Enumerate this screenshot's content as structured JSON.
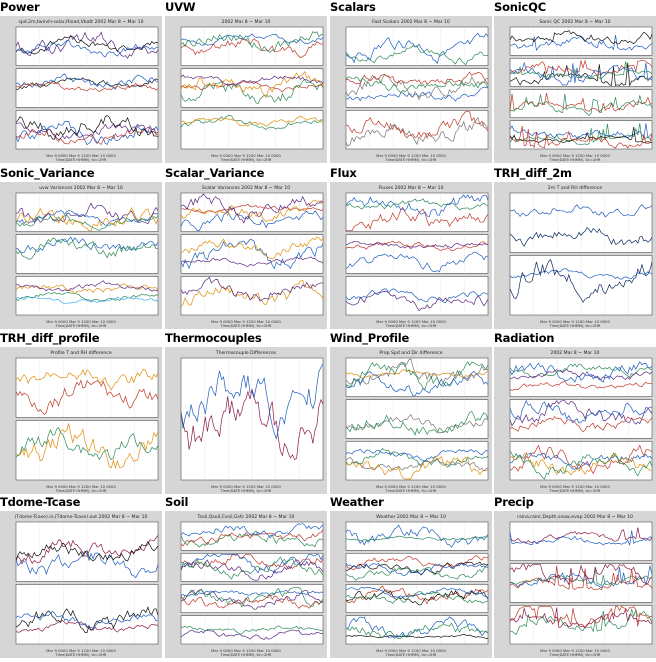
{
  "tiles": [
    {
      "title": "Power",
      "subtitle": "spd.2m,twind+solar,Rload,Vbatt 2002 Mar 8 ~ Mar 10",
      "panels": 3,
      "palette": [
        "#5a2a82",
        "#111111",
        "#1f5fbf",
        "#c0392b"
      ],
      "seed": 1
    },
    {
      "title": "UVW",
      "subtitle": "2002 Mar 8 ~ Mar 10",
      "panels": 3,
      "palette": [
        "#1f5fbf",
        "#c0392b",
        "#2e8b57",
        "#e08e0b",
        "#5a2a82"
      ],
      "seed": 2
    },
    {
      "title": "Scalars",
      "subtitle": "Fast Scalars 2002 Mar 8 ~ Mar 10",
      "panels": 3,
      "palette": [
        "#2e8b57",
        "#1f5fbf",
        "#777777",
        "#c0392b"
      ],
      "seed": 3
    },
    {
      "title": "SonicQC",
      "subtitle": "Sonic QC 2002 Mar 8 ~ Mar 10",
      "panels": 4,
      "palette": [
        "#1f5fbf",
        "#111111",
        "#c0392b",
        "#2e8b57"
      ],
      "seed": 4
    },
    {
      "title": "Sonic_Variance",
      "subtitle": "uvw Variances 2002 Mar 8 ~ Mar 10",
      "panels": 3,
      "palette": [
        "#5a2a82",
        "#1f5fbf",
        "#2e8b57",
        "#e08e0b",
        "#3fa9f5"
      ],
      "seed": 5
    },
    {
      "title": "Scalar_Variance",
      "subtitle": "Scalar Variances 2002 Mar 8 ~ Mar 10",
      "panels": 3,
      "palette": [
        "#c0392b",
        "#1f5fbf",
        "#e08e0b",
        "#5a2a82"
      ],
      "seed": 6
    },
    {
      "title": "Flux",
      "subtitle": "Fluxes 2002 Mar 8 ~ Mar 10",
      "panels": 3,
      "palette": [
        "#2e8b57",
        "#c0392b",
        "#1f5fbf",
        "#5a2a82"
      ],
      "seed": 7
    },
    {
      "title": "TRH_diff_2m",
      "subtitle": "2m T and RH difference",
      "panels": 2,
      "palette": [
        "#0b2a5e",
        "#1f5fbf"
      ],
      "seed": 8
    },
    {
      "title": "TRH_diff_profile",
      "subtitle": "Profile T and RH difference",
      "panels": 2,
      "palette": [
        "#c0392b",
        "#e08e0b",
        "#2e8b57",
        "#1f5fbf",
        "#5a2a82",
        "#111111"
      ],
      "seed": 9
    },
    {
      "title": "Thermocouples",
      "subtitle": "Thermocouple Differences",
      "panels": 1,
      "palette": [
        "#8b1a4a",
        "#1f5fbf",
        "#5a2a82",
        "#111111",
        "#2e8b57"
      ],
      "seed": 10
    },
    {
      "title": "Wind_Profile",
      "subtitle": "Prop Spd and Dir difference",
      "panels": 3,
      "palette": [
        "#e08e0b",
        "#777777",
        "#2e8b57",
        "#1f5fbf"
      ],
      "seed": 11
    },
    {
      "title": "Radiation",
      "subtitle": "2002 Mar 8 ~ Mar 10",
      "panels": 3,
      "palette": [
        "#2e8b57",
        "#5a2a82",
        "#c0392b",
        "#1f5fbf",
        "#e08e0b"
      ],
      "seed": 12
    },
    {
      "title": "Tdome-Tcase",
      "subtitle": "(Tdome-Tcase).in,(Tdome-Tcase).out 2002 Mar 8 ~ Mar 10",
      "panels": 2,
      "palette": [
        "#1f5fbf",
        "#8b1a4a",
        "#111111"
      ],
      "seed": 13
    },
    {
      "title": "Soil",
      "subtitle": "Tsoil,Qsoil,Cvsil,Gsfc 2002 Mar 8 ~ Mar 10",
      "panels": 4,
      "palette": [
        "#2e8b57",
        "#c0392b",
        "#1f5fbf",
        "#5a2a82"
      ],
      "seed": 14
    },
    {
      "title": "Weather",
      "subtitle": "Weather 2002 Mar 8 ~ Mar 10",
      "panels": 4,
      "palette": [
        "#1f5fbf",
        "#2e8b57",
        "#c0392b",
        "#111111"
      ],
      "seed": 15
    },
    {
      "title": "Precip",
      "subtitle": "raina,rainr,Depth,snow,evap 2002 Mar 8 ~ Mar 10",
      "panels": 3,
      "palette": [
        "#8b1a4a",
        "#1f5fbf",
        "#2e8b57",
        "#c0392b"
      ],
      "seed": 16
    }
  ]
}
